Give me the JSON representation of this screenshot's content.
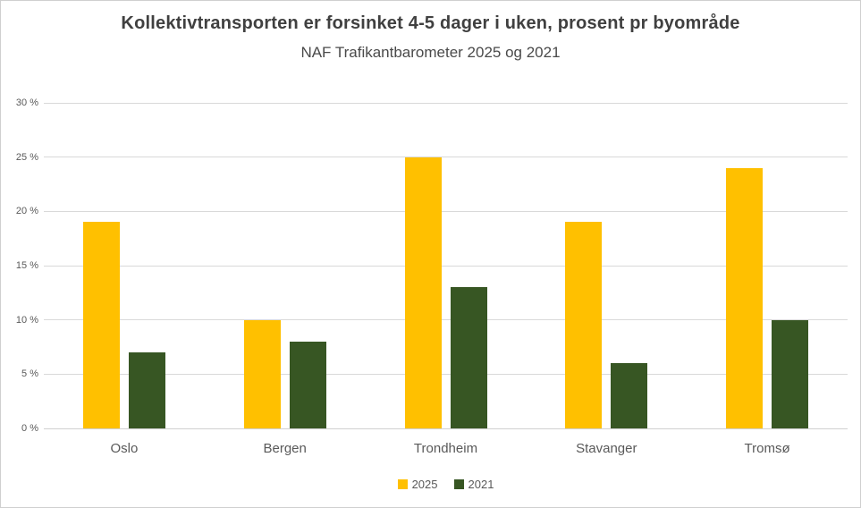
{
  "header": {
    "title": "Kollektivtransporten er forsinket 4-5 dager i uken, prosent pr byområde",
    "subtitle": "NAF Trafikantbarometer 2025 og 2021"
  },
  "chart_data": {
    "type": "bar",
    "title": "Kollektivtransporten er forsinket 4-5 dager i uken, prosent pr byområde",
    "subtitle": "NAF Trafikantbarometer 2025 og 2021",
    "categories": [
      "Oslo",
      "Bergen",
      "Trondheim",
      "Stavanger",
      "Tromsø"
    ],
    "series": [
      {
        "name": "2025",
        "color": "#FFC000",
        "values": [
          19,
          10,
          25,
          19,
          24
        ]
      },
      {
        "name": "2021",
        "color": "#375623",
        "values": [
          7,
          8,
          13,
          6,
          10
        ]
      }
    ],
    "xlabel": "",
    "ylabel": "",
    "ylim": [
      0,
      30
    ],
    "ytick_step": 5,
    "ytick_suffix": " %",
    "ytick_labels": [
      "0 %",
      "5 %",
      "10 %",
      "15 %",
      "20 %",
      "25 %",
      "30 %"
    ],
    "grid": true,
    "legend_position": "bottom"
  },
  "colors": {
    "series_2025": "#FFC000",
    "series_2021": "#375623",
    "gridline": "#d9d9d9",
    "title_text": "#404040",
    "axis_text": "#595959",
    "background": "#ffffff",
    "frame_border": "#cfcfcf"
  }
}
